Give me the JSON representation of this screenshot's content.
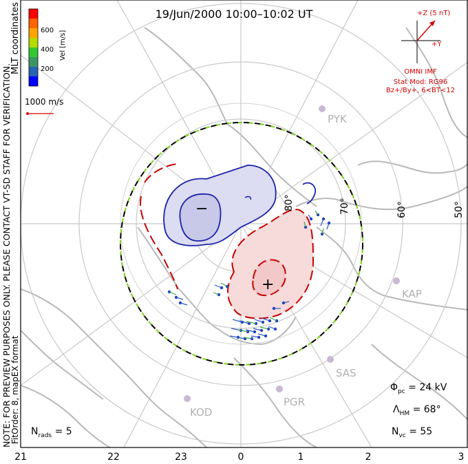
{
  "title": "19/Jun/2000 10:00–10:02 UT",
  "left_notes": {
    "mlt_coordinates": "MLT coordinates",
    "preview_note": "NOTE: FOR PREVIEW PURPOSES ONLY. PLEASE CONTACT VT-SD STAFF FOR VERIFICATION.",
    "fitorder": "FitOrder: 8, mapEX format"
  },
  "colorbar": {
    "label": "Vel [m/s]",
    "ticks": [
      "600",
      "400",
      "200"
    ],
    "colors": [
      "#ff0000",
      "#ff6400",
      "#ffa500",
      "#b4dc00",
      "#32c832",
      "#3c9664",
      "#2864b4",
      "#0000ff"
    ]
  },
  "scale_vector": {
    "label": "1000 m/s",
    "color": "#d40000"
  },
  "imf": {
    "z_label": "+Z (5 nT)",
    "y_label": "+Y",
    "source": "OMNI IMF",
    "model": "Stat Mod: RG96",
    "condition": "Bz+/By+, 6<BT<12",
    "color": "#d40000"
  },
  "latitude_labels": [
    "80°",
    "70°",
    "60°",
    "50°"
  ],
  "stations": [
    "PYK",
    "KAP",
    "SAS",
    "PGR",
    "KOD"
  ],
  "mlt_labels": [
    "21",
    "22",
    "23",
    "0",
    "1",
    "2",
    "3"
  ],
  "stats": {
    "phi_pc_label": "Φ",
    "phi_pc_sub": "pc",
    "phi_pc_value": "= 24 kV",
    "lambda_label": "Λ",
    "lambda_sub": "HM",
    "lambda_value": "= 68°",
    "nvc_label": "N",
    "nvc_sub": "vc",
    "nvc_value": "= 55",
    "nrads_label": "N",
    "nrads_sub": "rads",
    "nrads_value": "= 5"
  },
  "potential_markers": {
    "min": "−",
    "max": "+"
  },
  "contour_colors": {
    "negative": "#1a22a8",
    "positive": "#c80000",
    "neg_fill": "#d8daf0",
    "pos_fill": "#f7dada",
    "hm_boundary": "#000000",
    "hm_dash": "#7ed321"
  }
}
